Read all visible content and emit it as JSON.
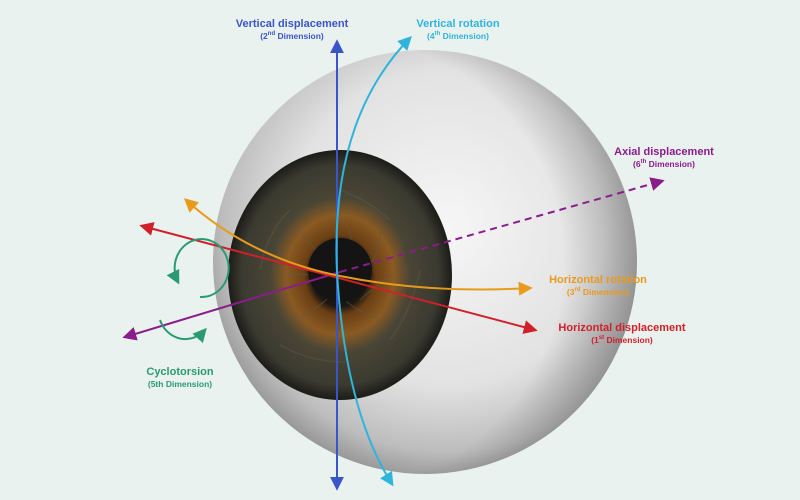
{
  "colors": {
    "background": "#e9f2ee",
    "vertical_displacement": "#3a55c8",
    "vertical_rotation": "#2fb4dc",
    "horizontal_rotation": "#e89a1c",
    "horizontal_displacement": "#d0202a",
    "axial_displacement": "#8a1c8c",
    "cyclotorsion": "#2a9a72",
    "sclera": "#e6e6e6",
    "iris": "#3a3a2a",
    "iris_inner": "#8a5a22",
    "pupil": "#151515"
  },
  "labels": {
    "vertical_displacement": {
      "title": "Vertical displacement",
      "pre": "(2",
      "sup": "nd",
      "post": " Dimension)"
    },
    "vertical_rotation": {
      "title": "Vertical rotation",
      "pre": "(4",
      "sup": "th",
      "post": " Dimension)"
    },
    "axial_displacement": {
      "title": "Axial displacement",
      "pre": "(6",
      "sup": "th",
      "post": " Dimension)"
    },
    "horizontal_rotation": {
      "title": "Horizontal rotation",
      "pre": "(3",
      "sup": "rd",
      "post": " Dimension)"
    },
    "horizontal_displacement": {
      "title": "Horizontal displacement",
      "pre": "(1",
      "sup": "st",
      "post": " Dimension)"
    },
    "cyclotorsion": {
      "title": "Cyclotorsion",
      "sub": "(5th Dimension)"
    }
  }
}
